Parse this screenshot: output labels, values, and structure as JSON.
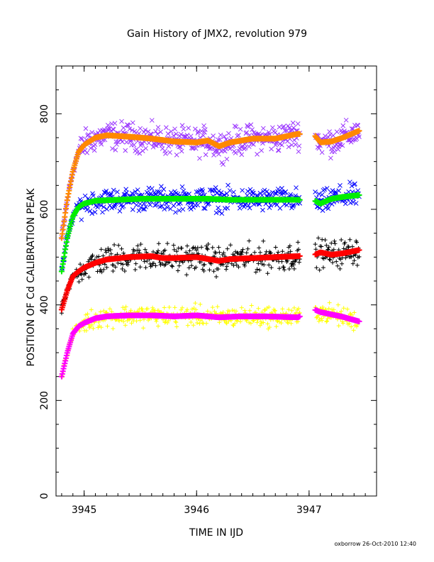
{
  "chart_data": {
    "type": "scatter",
    "title": "Gain History of JMX2, revolution 979",
    "xlabel": "TIME IN IJD",
    "ylabel": "POSITION OF Cd CALIBRATION PEAK",
    "xlim": [
      3944.75,
      3947.6
    ],
    "ylim": [
      0,
      900
    ],
    "xticks": [
      3945,
      3946,
      3947
    ],
    "xtick_labels": [
      "3945",
      "3946",
      "3947"
    ],
    "yticks": [
      0,
      200,
      400,
      600,
      800
    ],
    "ytick_labels": [
      "0",
      "200",
      "400",
      "600",
      "800"
    ],
    "grid": false,
    "legend": "none",
    "gap": [
      3946.92,
      3947.05
    ],
    "series": [
      {
        "color": "#9933ff",
        "marker": "x",
        "trend": [
          [
            3944.8,
            540
          ],
          [
            3944.85,
            620
          ],
          [
            3944.9,
            680
          ],
          [
            3944.95,
            720
          ],
          [
            3945.0,
            735
          ],
          [
            3945.1,
            750
          ],
          [
            3945.2,
            755
          ],
          [
            3945.4,
            752
          ],
          [
            3945.6,
            748
          ],
          [
            3945.8,
            742
          ],
          [
            3946.0,
            740
          ],
          [
            3946.1,
            744
          ],
          [
            3946.2,
            732
          ],
          [
            3946.3,
            740
          ],
          [
            3946.5,
            748
          ],
          [
            3946.7,
            748
          ],
          [
            3946.9,
            758
          ],
          [
            3947.05,
            755
          ],
          [
            3947.1,
            740
          ],
          [
            3947.2,
            742
          ],
          [
            3947.3,
            750
          ],
          [
            3947.45,
            765
          ]
        ],
        "scatter": 22
      },
      {
        "color": "#ff8800",
        "marker": "+trend",
        "trend_ref": 0
      },
      {
        "color": "#0000ff",
        "marker": "x",
        "trend": [
          [
            3944.8,
            470
          ],
          [
            3944.85,
            540
          ],
          [
            3944.9,
            585
          ],
          [
            3944.95,
            605
          ],
          [
            3945.0,
            612
          ],
          [
            3945.1,
            618
          ],
          [
            3945.3,
            620
          ],
          [
            3945.5,
            622
          ],
          [
            3945.7,
            622
          ],
          [
            3945.9,
            622
          ],
          [
            3946.1,
            622
          ],
          [
            3946.3,
            620
          ],
          [
            3946.5,
            620
          ],
          [
            3946.7,
            620
          ],
          [
            3946.9,
            620
          ],
          [
            3947.05,
            618
          ],
          [
            3947.1,
            612
          ],
          [
            3947.2,
            622
          ],
          [
            3947.3,
            626
          ],
          [
            3947.45,
            630
          ]
        ],
        "scatter": 18
      },
      {
        "color": "#00ee00",
        "marker": "+trend",
        "trend_ref": 2
      },
      {
        "color": "#000000",
        "marker": "+",
        "trend": [
          [
            3944.8,
            390
          ],
          [
            3944.85,
            430
          ],
          [
            3944.9,
            460
          ],
          [
            3944.95,
            470
          ],
          [
            3945.0,
            478
          ],
          [
            3945.1,
            488
          ],
          [
            3945.2,
            495
          ],
          [
            3945.4,
            500
          ],
          [
            3945.6,
            502
          ],
          [
            3945.7,
            498
          ],
          [
            3945.8,
            498
          ],
          [
            3946.0,
            500
          ],
          [
            3946.2,
            492
          ],
          [
            3946.3,
            496
          ],
          [
            3946.5,
            498
          ],
          [
            3946.7,
            500
          ],
          [
            3946.9,
            502
          ],
          [
            3947.05,
            505
          ],
          [
            3947.1,
            510
          ],
          [
            3947.2,
            505
          ],
          [
            3947.3,
            508
          ],
          [
            3947.45,
            515
          ]
        ],
        "scatter": 22
      },
      {
        "color": "#ff0000",
        "marker": "+trend",
        "trend_ref": 4
      },
      {
        "color": "#ffff00",
        "marker": "+",
        "trend": [
          [
            3944.8,
            250
          ],
          [
            3944.85,
            300
          ],
          [
            3944.9,
            340
          ],
          [
            3944.95,
            355
          ],
          [
            3945.0,
            362
          ],
          [
            3945.1,
            372
          ],
          [
            3945.2,
            376
          ],
          [
            3945.4,
            378
          ],
          [
            3945.6,
            378
          ],
          [
            3945.8,
            376
          ],
          [
            3946.0,
            378
          ],
          [
            3946.2,
            374
          ],
          [
            3946.4,
            376
          ],
          [
            3946.6,
            376
          ],
          [
            3946.9,
            374
          ],
          [
            3947.05,
            390
          ],
          [
            3947.1,
            385
          ],
          [
            3947.2,
            380
          ],
          [
            3947.3,
            375
          ],
          [
            3947.45,
            365
          ]
        ],
        "scatter": 16
      },
      {
        "color": "#ff00ff",
        "marker": "+trend",
        "trend_ref": 6
      }
    ]
  },
  "footer": {
    "credit": "oxborrow  26-Oct-2010 12:40"
  }
}
